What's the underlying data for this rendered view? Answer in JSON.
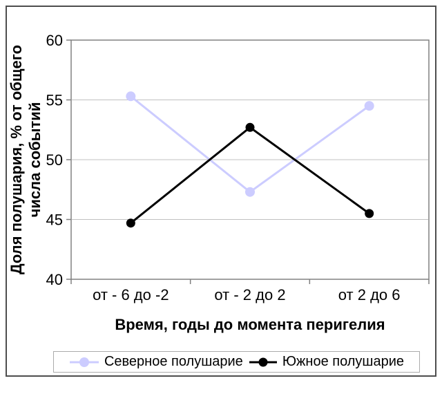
{
  "chart_data": {
    "type": "line",
    "categories": [
      "от - 6 до -2",
      "от - 2 до 2",
      "от 2 до 6"
    ],
    "series": [
      {
        "name": "Северное полушарие",
        "color": "#CCCCFF",
        "marker": "circle",
        "values": [
          55.3,
          47.3,
          54.5
        ]
      },
      {
        "name": "Южное полушарие",
        "color": "#000000",
        "marker": "circle",
        "values": [
          44.7,
          52.7,
          45.5
        ]
      }
    ],
    "title": "",
    "xlabel": "Время, годы до момента перигелия",
    "ylabel_line1": "Доля полушария, % от общего",
    "ylabel_line2": "числа событий",
    "ylim": [
      40,
      60
    ],
    "yticks": [
      40,
      45,
      50,
      55,
      60
    ],
    "grid": "horizontal",
    "legend_position": "bottom"
  },
  "colors": {
    "background": "#FFFFFF",
    "plot_border": "#808080",
    "gridline": "#C0C0C0",
    "frame_border": "#4D4D4D",
    "legend_border": "#ABABAB"
  }
}
